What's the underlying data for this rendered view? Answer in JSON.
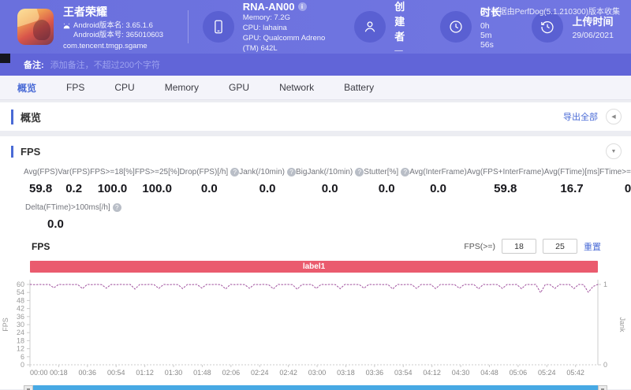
{
  "header": {
    "app": {
      "title": "王者荣耀",
      "version_name": "Android版本名: 3.65.1.6",
      "version_code": "Android版本号: 365010603",
      "package": "com.tencent.tmgp.sgame"
    },
    "device": {
      "name": "RNA-AN00",
      "memory": "Memory: 7.2G",
      "cpu": "CPU: lahaina",
      "gpu": "GPU: Qualcomm Adreno (TM) 642L"
    },
    "creator": {
      "label": "创建者",
      "value": "—"
    },
    "duration": {
      "label": "时长",
      "value": "0h 5m 56s"
    },
    "upload": {
      "label": "上传时间",
      "value": "29/06/2021"
    },
    "source_note": "数据由PerfDog(5.1.210300)版本收集"
  },
  "icons": {
    "info": "i",
    "help": "?",
    "collapse_left": "◀",
    "collapse_down": "▼"
  },
  "note_bar": {
    "label": "备注:",
    "placeholder": "添加备注，不超过200个字符"
  },
  "tabs": [
    {
      "label": "概览",
      "active": true
    },
    {
      "label": "FPS",
      "active": false
    },
    {
      "label": "CPU",
      "active": false
    },
    {
      "label": "Memory",
      "active": false
    },
    {
      "label": "GPU",
      "active": false
    },
    {
      "label": "Network",
      "active": false
    },
    {
      "label": "Battery",
      "active": false
    }
  ],
  "overview": {
    "title": "概览",
    "export_label": "导出全部"
  },
  "fps_section": {
    "title": "FPS",
    "metrics": [
      {
        "label": "Avg(FPS)",
        "value": "59.8",
        "help": false
      },
      {
        "label": "Var(FPS)",
        "value": "0.2",
        "help": false
      },
      {
        "label": "FPS>=18[%]",
        "value": "100.0",
        "help": false
      },
      {
        "label": "FPS>=25[%]",
        "value": "100.0",
        "help": false
      },
      {
        "label": "Drop(FPS)[/h]",
        "value": "0.0",
        "help": true
      },
      {
        "label": "Jank(/10min)",
        "value": "0.0",
        "help": true
      },
      {
        "label": "BigJank(/10min)",
        "value": "0.0",
        "help": true
      },
      {
        "label": "Stutter[%]",
        "value": "0.0",
        "help": true
      },
      {
        "label": "Avg(InterFrame)",
        "value": "0.0",
        "help": false
      },
      {
        "label": "Avg(FPS+InterFrame)",
        "value": "59.8",
        "help": false
      },
      {
        "label": "Avg(FTime)[ms]",
        "value": "16.7",
        "help": false
      },
      {
        "label": "FTime>=100ms[%]",
        "value": "0.0",
        "help": false
      }
    ],
    "metrics_row2": [
      {
        "label": "Delta(FTime)>100ms[/h]",
        "value": "0.0",
        "help": true
      }
    ],
    "chart_title": "FPS",
    "threshold": {
      "label": "FPS(>=)",
      "input1": "18",
      "input2": "25",
      "reset_label": "重置"
    }
  },
  "chart_data": {
    "type": "line",
    "title": "FPS",
    "duration_s": 356,
    "annotation_band": {
      "text": "label1",
      "color": "#ea5b6e"
    },
    "x_ticks": [
      "00:00",
      "00:18",
      "00:36",
      "00:54",
      "01:12",
      "01:30",
      "01:48",
      "02:06",
      "02:24",
      "02:42",
      "03:00",
      "03:18",
      "03:36",
      "03:54",
      "04:12",
      "04:30",
      "04:48",
      "05:06",
      "05:24",
      "05:42"
    ],
    "y_left": {
      "label": "FPS",
      "ticks": [
        0,
        6,
        12,
        18,
        24,
        30,
        36,
        42,
        48,
        54,
        60
      ],
      "range": [
        0,
        62
      ]
    },
    "y_right": {
      "label": "Jank",
      "ticks": [
        0,
        1
      ],
      "range": [
        0,
        1
      ]
    },
    "series": [
      {
        "name": "FPS",
        "color": "#a0519e",
        "x_interval_s": 3,
        "values": [
          60,
          59.8,
          60,
          59.9,
          60,
          57.5,
          60,
          59.8,
          60,
          59.9,
          60,
          56.8,
          60,
          59.8,
          60,
          59.9,
          57.2,
          60,
          59.8,
          60,
          59.9,
          60,
          56.5,
          60,
          59.8,
          60,
          59.9,
          57,
          60,
          59.8,
          60,
          59.9,
          56.9,
          60,
          59.8,
          60,
          57.3,
          60,
          59.9,
          60,
          59.8,
          56.6,
          60,
          59.9,
          60,
          59.8,
          57.1,
          60,
          59.9,
          60,
          59.8,
          56.7,
          60,
          59.9,
          60,
          59.8,
          56.4,
          60,
          59.9,
          60,
          57,
          60,
          59.8,
          60,
          59.9,
          56.8,
          60,
          59.8,
          60,
          59.9,
          57.2,
          60,
          59.8,
          60,
          59.9,
          60,
          56.6,
          60,
          59.8,
          60,
          59.9,
          57,
          60,
          59.8,
          60,
          56.9,
          60,
          59.9,
          60,
          59.8,
          57.1,
          60,
          59.9,
          60,
          56.7,
          60,
          59.8,
          60,
          59.9,
          57,
          60,
          59.8,
          60,
          56.8,
          60,
          59.9,
          60,
          53.8,
          60,
          59.8,
          57,
          60,
          59.9,
          60,
          56.9,
          60,
          59.8,
          54.2,
          58.5,
          60
        ]
      }
    ]
  }
}
